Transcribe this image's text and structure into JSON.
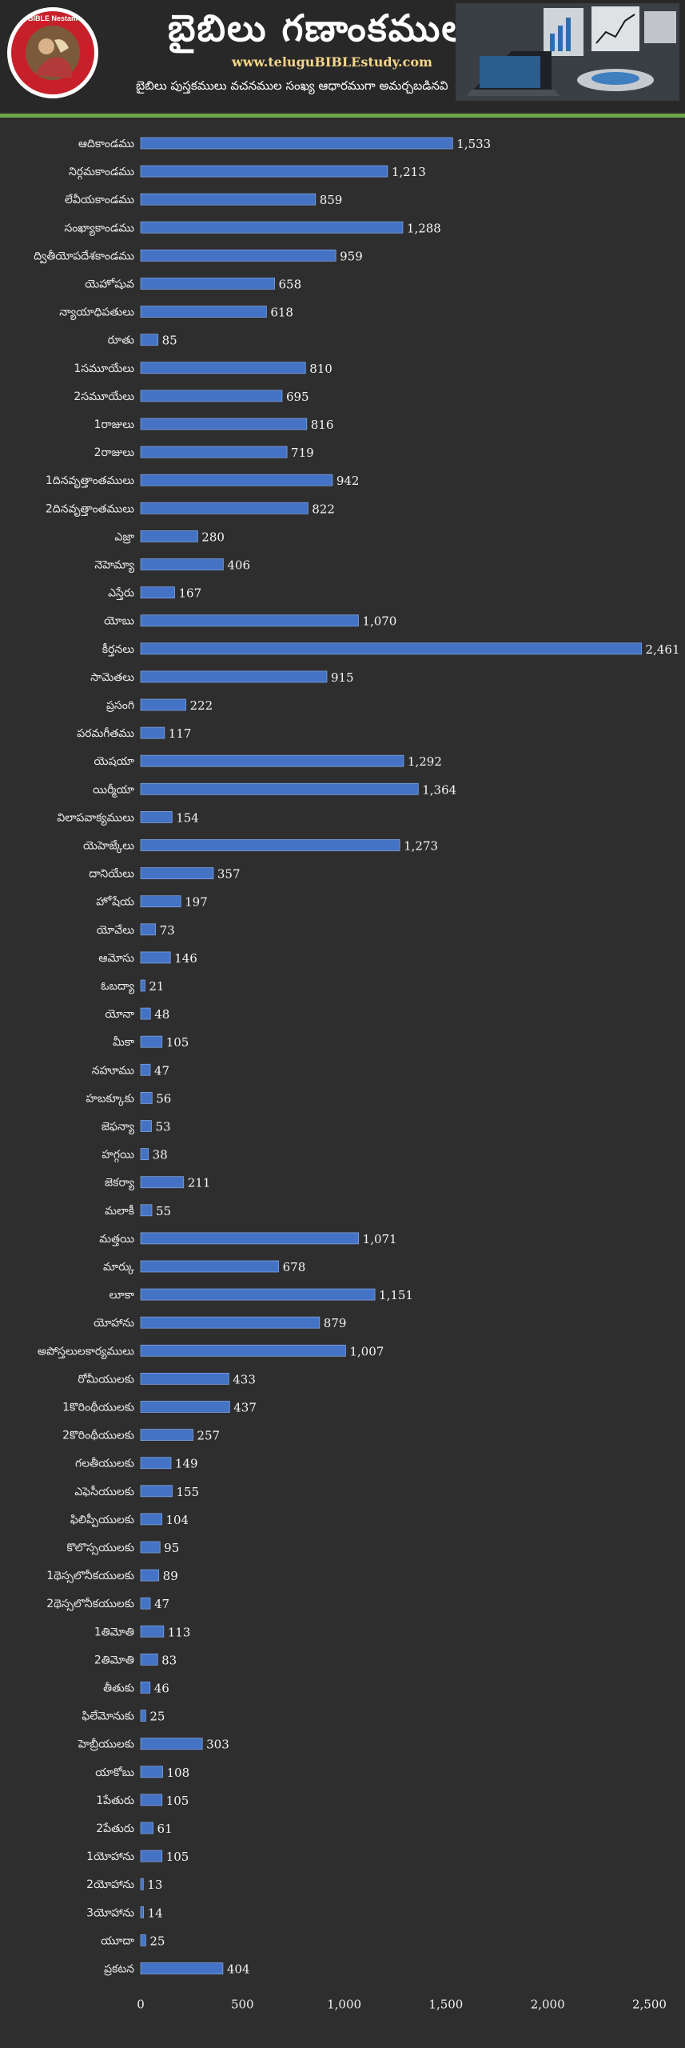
{
  "header": {
    "title": "బైబిలు గణాంకములు",
    "site": "www.teluguBIBLEstudy.com",
    "subtitle": "బైబిలు పుస్తకములు వచనముల సంఖ్య ఆధారముగా అమర్చబడినవి",
    "logo_text": "BIBLE Nestam",
    "colors": {
      "accent": "#6fa84a",
      "site": "#f5d68a",
      "bar": "#4472c4"
    }
  },
  "chart_data": {
    "type": "bar",
    "orientation": "horizontal",
    "xlim": [
      0,
      2500
    ],
    "xticks": [
      0,
      500,
      1000,
      1500,
      2000,
      2500
    ],
    "xtick_labels": [
      "0",
      "500",
      "1,000",
      "1,500",
      "2,000",
      "2,500"
    ],
    "grid": false,
    "categories": [
      "ఆదికాండము",
      "నిర్గమకాండము",
      "లేవీయకాండము",
      "సంఖ్యాకాండము",
      "ద్వితీయోపదేశకాండము",
      "యెహోషువ",
      "న్యాయాధిపతులు",
      "రూతు",
      "1సమూయేలు",
      "2సమూయేలు",
      "1రాజులు",
      "2రాజులు",
      "1దినవృత్తాంతములు",
      "2దినవృత్తాంతములు",
      "ఎజ్రా",
      "నెహెమ్యా",
      "ఎస్తేరు",
      "యోబు",
      "కీర్తనలు",
      "సామెతలు",
      "ప్రసంగి",
      "పరమగీతము",
      "యెషయా",
      "యిర్మీయా",
      "విలాపవాక్యములు",
      "యెహెజ్కేలు",
      "దానియేలు",
      "హోషేయ",
      "యోవేలు",
      "ఆమోసు",
      "ఓబద్యా",
      "యోనా",
      "మీకా",
      "నహూము",
      "హబక్కూకు",
      "జెఫన్యా",
      "హగ్గయి",
      "జెకర్యా",
      "మలాకీ",
      "మత్తయి",
      "మార్కు",
      "లూకా",
      "యోహాను",
      "అపోస్తలులకార్యములు",
      "రోమీయులకు",
      "1కొరింథీయులకు",
      "2కొరింథీయులకు",
      "గలతీయులకు",
      "ఎఫెసీయులకు",
      "ఫిలిప్పీయులకు",
      "కొలొస్సయులకు",
      "1థెస్సలొనీకయులకు",
      "2థెస్సలొనీకయులకు",
      "1తిమోతి",
      "2తిమోతి",
      "తీతుకు",
      "ఫిలేమోనుకు",
      "హెబ్రీయులకు",
      "యాకోబు",
      "1పేతురు",
      "2పేతురు",
      "1యోహాను",
      "2యోహాను",
      "3యోహాను",
      "యూదా",
      "ప్రకటన"
    ],
    "values": [
      1533,
      1213,
      859,
      1288,
      959,
      658,
      618,
      85,
      810,
      695,
      816,
      719,
      942,
      822,
      280,
      406,
      167,
      1070,
      2461,
      915,
      222,
      117,
      1292,
      1364,
      154,
      1273,
      357,
      197,
      73,
      146,
      21,
      48,
      105,
      47,
      56,
      53,
      38,
      211,
      55,
      1071,
      678,
      1151,
      879,
      1007,
      433,
      437,
      257,
      149,
      155,
      104,
      95,
      89,
      47,
      113,
      83,
      46,
      25,
      303,
      108,
      105,
      61,
      105,
      13,
      14,
      25,
      404
    ],
    "value_labels": [
      "1,533",
      "1,213",
      "859",
      "1,288",
      "959",
      "658",
      "618",
      "85",
      "810",
      "695",
      "816",
      "719",
      "942",
      "822",
      "280",
      "406",
      "167",
      "1,070",
      "2,461",
      "915",
      "222",
      "117",
      "1,292",
      "1,364",
      "154",
      "1,273",
      "357",
      "197",
      "73",
      "146",
      "21",
      "48",
      "105",
      "47",
      "56",
      "53",
      "38",
      "211",
      "55",
      "1,071",
      "678",
      "1,151",
      "879",
      "1,007",
      "433",
      "437",
      "257",
      "149",
      "155",
      "104",
      "95",
      "89",
      "47",
      "113",
      "83",
      "46",
      "25",
      "303",
      "108",
      "105",
      "61",
      "105",
      "13",
      "14",
      "25",
      "404"
    ]
  }
}
